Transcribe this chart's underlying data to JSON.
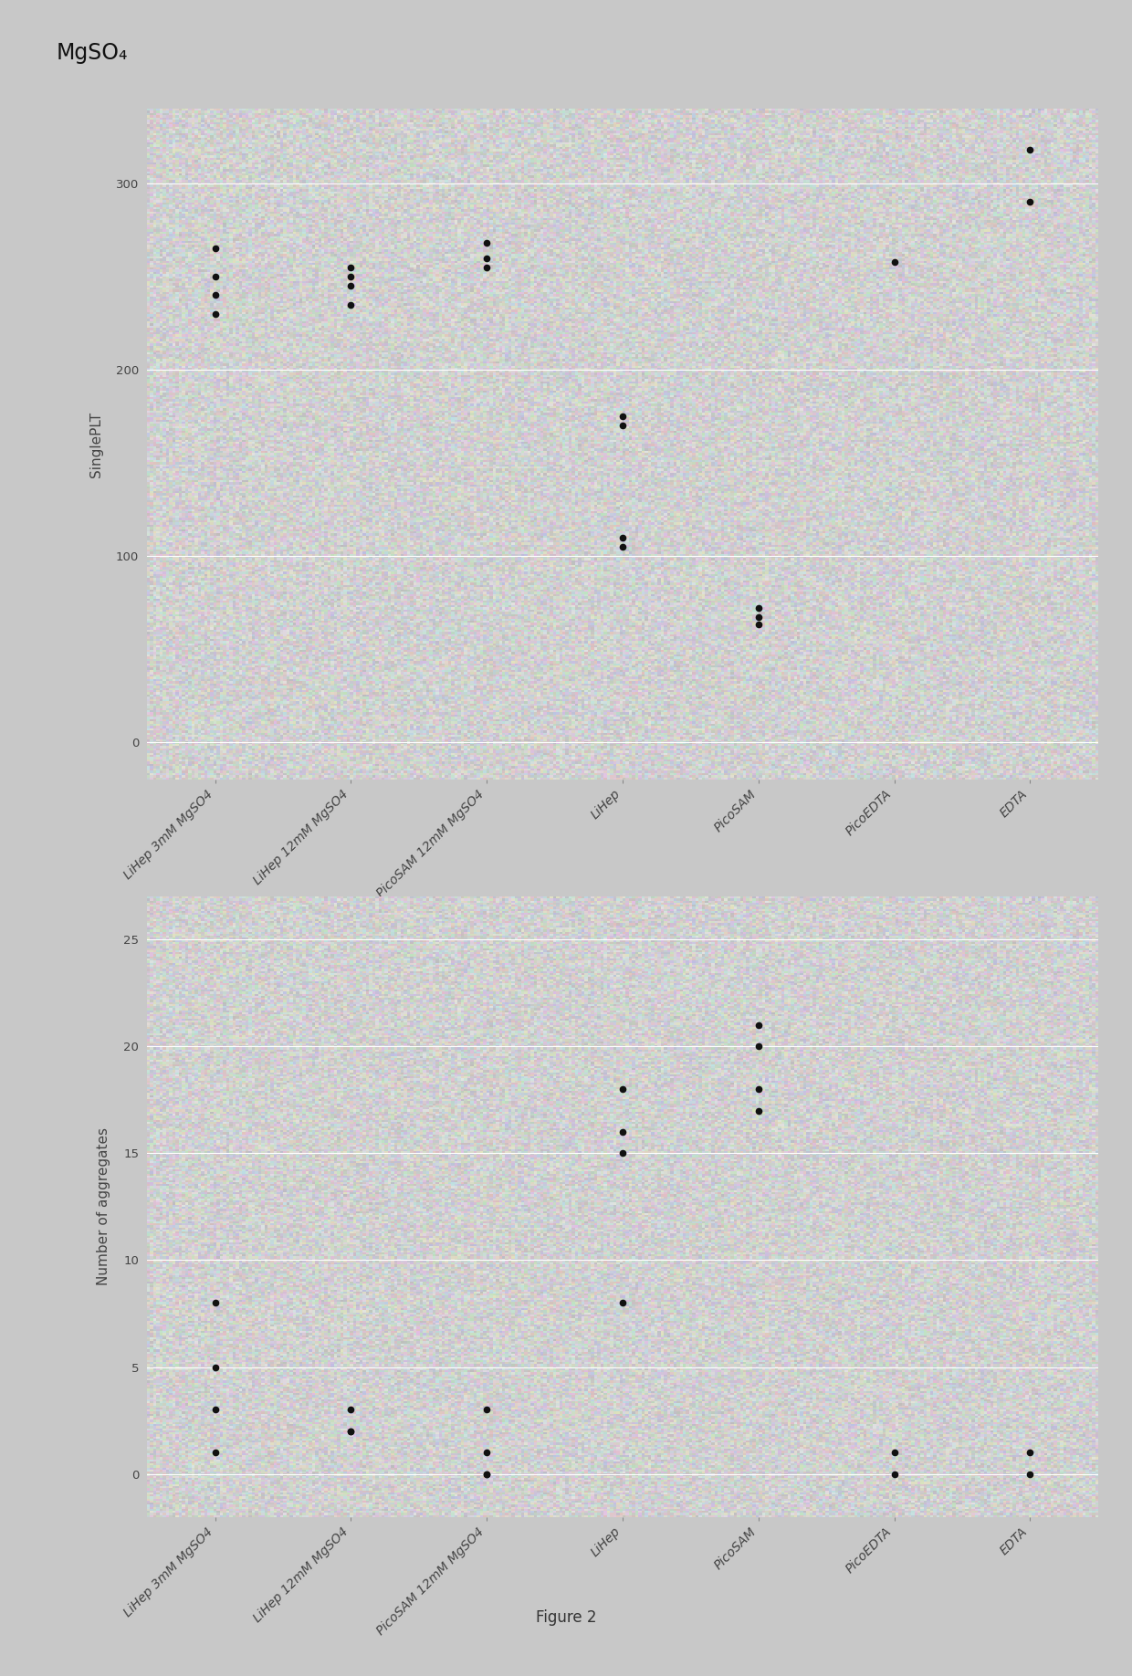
{
  "suptitle": "MgSO₄",
  "figure_caption": "Figure 2",
  "categories": [
    "LiHep 3mM MgSO4",
    "LiHep 12mM MgSO4",
    "PicoSAM 12mM MgSO4",
    "LiHep",
    "PicoSAM",
    "PicoEDTA",
    "EDTA"
  ],
  "plot1": {
    "ylabel": "SinglePLT",
    "ylim": [
      -20,
      340
    ],
    "yticks": [
      0,
      100,
      200,
      300
    ],
    "data": {
      "LiHep 3mM MgSO4": [
        265,
        250,
        240,
        230
      ],
      "LiHep 12mM MgSO4": [
        255,
        250,
        245,
        235
      ],
      "PicoSAM 12mM MgSO4": [
        268,
        260,
        255
      ],
      "LiHep": [
        175,
        170,
        110,
        105
      ],
      "PicoSAM": [
        72,
        67,
        63
      ],
      "PicoEDTA": [
        258
      ],
      "EDTA": [
        318,
        290
      ]
    }
  },
  "plot2": {
    "ylabel": "Number of aggregates",
    "ylim": [
      -2,
      27
    ],
    "yticks": [
      0,
      5,
      10,
      15,
      20,
      25
    ],
    "data": {
      "LiHep 3mM MgSO4": [
        8,
        5,
        3,
        1
      ],
      "LiHep 12mM MgSO4": [
        3,
        2,
        2
      ],
      "PicoSAM 12mM MgSO4": [
        3,
        1,
        0,
        0
      ],
      "LiHep": [
        18,
        16,
        15,
        8
      ],
      "PicoSAM": [
        21,
        20,
        18,
        17
      ],
      "PicoEDTA": [
        1,
        0
      ],
      "EDTA": [
        1,
        0
      ]
    }
  },
  "dot_color": "#111111",
  "bg_color": "#c8c8c8",
  "plot_bg": "#d4d4d4",
  "grid_color": "#ffffff",
  "tick_label_rotation": 45,
  "fig_width": 12.4,
  "fig_height": 18.36,
  "dpi": 100
}
